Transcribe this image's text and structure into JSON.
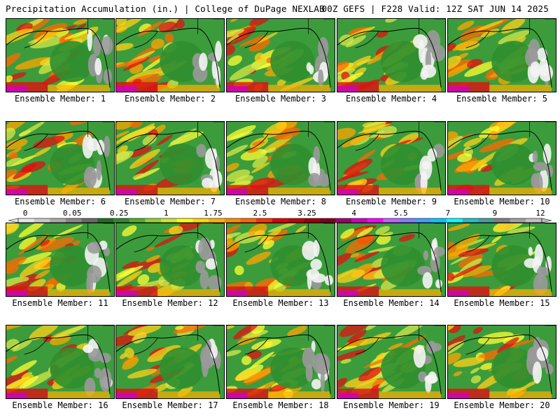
{
  "header": {
    "title_left": "Precipitation Accumulation (in.) | College of DuPage NEXLAB",
    "title_right": "00Z GEFS | F228 Valid: 12Z SAT JUN 14 2025"
  },
  "panels": [
    {
      "label": "Ensemble Member: 1"
    },
    {
      "label": "Ensemble Member: 2"
    },
    {
      "label": "Ensemble Member: 3"
    },
    {
      "label": "Ensemble Member: 4"
    },
    {
      "label": "Ensemble Member: 5"
    },
    {
      "label": "Ensemble Member: 6"
    },
    {
      "label": "Ensemble Member: 7"
    },
    {
      "label": "Ensemble Member: 8"
    },
    {
      "label": "Ensemble Member: 9"
    },
    {
      "label": "Ensemble Member: 10"
    },
    {
      "label": "Ensemble Member: 11"
    },
    {
      "label": "Ensemble Member: 12"
    },
    {
      "label": "Ensemble Member: 13"
    },
    {
      "label": "Ensemble Member: 14"
    },
    {
      "label": "Ensemble Member: 15"
    },
    {
      "label": "Ensemble Member: 16"
    },
    {
      "label": "Ensemble Member: 17"
    },
    {
      "label": "Ensemble Member: 18"
    },
    {
      "label": "Ensemble Member: 19"
    },
    {
      "label": "Ensemble Member: 20"
    }
  ],
  "colorbar": {
    "tick_labels": [
      "0",
      "0.05",
      "0.25",
      "1",
      "1.75",
      "2.5",
      "3.25",
      "4",
      "5.5",
      "7",
      "9",
      "12"
    ],
    "colors": [
      "#e6e6e6",
      "#c8c8c8",
      "#a8a8a8",
      "#888888",
      "#6a6a6a",
      "#1f6f1f",
      "#2e8b2e",
      "#4faf2f",
      "#8fd030",
      "#c8e830",
      "#ffff00",
      "#ffd700",
      "#ffb000",
      "#ff8c00",
      "#ff6600",
      "#ff3300",
      "#e60000",
      "#c80000",
      "#a00000",
      "#800020",
      "#a0006a",
      "#d000c0",
      "#ff00ff",
      "#c060ff",
      "#8080ff",
      "#40a0ff",
      "#00c8ff",
      "#00ffff",
      "#20c0c0",
      "#40a0a0",
      "#808080",
      "#a0a0a0",
      "#c0c0c0"
    ]
  }
}
